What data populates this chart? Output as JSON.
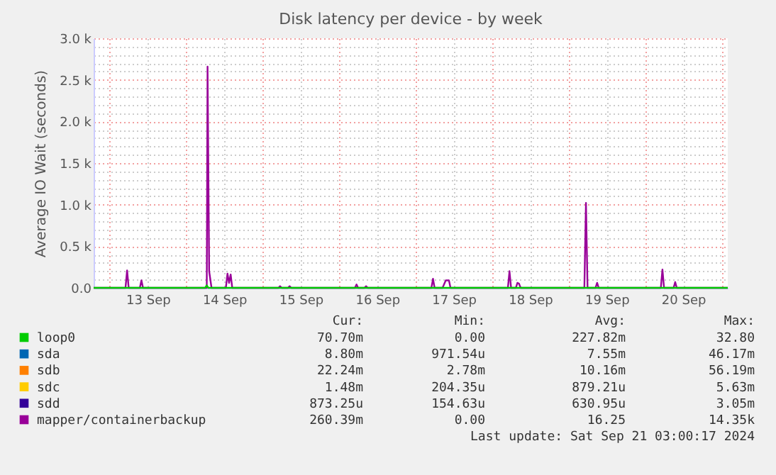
{
  "chart_data": {
    "type": "line",
    "title": "Disk latency per device - by week",
    "ylabel": "Average IO Wait (seconds)",
    "xlim": [
      "2024-09-12T19:00",
      "2024-09-21T02:00"
    ],
    "xticks": [
      {
        "value": "2024-09-13T00:00",
        "label": null
      },
      {
        "value": "2024-09-13T12:00",
        "label": "13 Sep"
      },
      {
        "value": "2024-09-14T00:00",
        "label": null
      },
      {
        "value": "2024-09-14T12:00",
        "label": "14 Sep"
      },
      {
        "value": "2024-09-15T00:00",
        "label": null
      },
      {
        "value": "2024-09-15T12:00",
        "label": "15 Sep"
      },
      {
        "value": "2024-09-16T00:00",
        "label": null
      },
      {
        "value": "2024-09-16T12:00",
        "label": "16 Sep"
      },
      {
        "value": "2024-09-17T00:00",
        "label": null
      },
      {
        "value": "2024-09-17T12:00",
        "label": "17 Sep"
      },
      {
        "value": "2024-09-18T00:00",
        "label": null
      },
      {
        "value": "2024-09-18T12:00",
        "label": "18 Sep"
      },
      {
        "value": "2024-09-19T00:00",
        "label": null
      },
      {
        "value": "2024-09-19T12:00",
        "label": "19 Sep"
      },
      {
        "value": "2024-09-20T00:00",
        "label": null
      },
      {
        "value": "2024-09-20T12:00",
        "label": "20 Sep"
      },
      {
        "value": "2024-09-21T00:00",
        "label": null
      }
    ],
    "ylim": [
      0,
      3000
    ],
    "yticks": [
      {
        "value": 0,
        "label": "0.0"
      },
      {
        "value": 100,
        "label": null
      },
      {
        "value": 200,
        "label": null
      },
      {
        "value": 300,
        "label": null
      },
      {
        "value": 400,
        "label": null
      },
      {
        "value": 500,
        "label": "0.5 k"
      },
      {
        "value": 600,
        "label": null
      },
      {
        "value": 700,
        "label": null
      },
      {
        "value": 800,
        "label": null
      },
      {
        "value": 900,
        "label": null
      },
      {
        "value": 1000,
        "label": "1.0 k"
      },
      {
        "value": 1100,
        "label": null
      },
      {
        "value": 1200,
        "label": null
      },
      {
        "value": 1300,
        "label": null
      },
      {
        "value": 1400,
        "label": null
      },
      {
        "value": 1500,
        "label": "1.5 k"
      },
      {
        "value": 1600,
        "label": null
      },
      {
        "value": 1700,
        "label": null
      },
      {
        "value": 1800,
        "label": null
      },
      {
        "value": 1900,
        "label": null
      },
      {
        "value": 2000,
        "label": "2.0 k"
      },
      {
        "value": 2100,
        "label": null
      },
      {
        "value": 2200,
        "label": null
      },
      {
        "value": 2300,
        "label": null
      },
      {
        "value": 2400,
        "label": null
      },
      {
        "value": 2500,
        "label": "2.5 k"
      },
      {
        "value": 2600,
        "label": null
      },
      {
        "value": 2700,
        "label": null
      },
      {
        "value": 2800,
        "label": null
      },
      {
        "value": 2900,
        "label": null
      },
      {
        "value": 3000,
        "label": "3.0 k"
      }
    ],
    "grid": true,
    "legend": "bottom",
    "marker": "none",
    "line_style": "solid",
    "series": [
      {
        "name": "loop0",
        "color": "#00cc00",
        "x": [
          "2024-09-12T19:00",
          "2024-09-14T06:00",
          "2024-09-14T06:30",
          "2024-09-14T07:00",
          "2024-09-21T02:00"
        ],
        "values": [
          0,
          0,
          30,
          0,
          0
        ]
      },
      {
        "name": "sda",
        "color": "#0066b3"
      },
      {
        "name": "sdb",
        "color": "#ff8000"
      },
      {
        "name": "sdc",
        "color": "#ffcc00"
      },
      {
        "name": "sdd",
        "color": "#330099"
      },
      {
        "name": "mapper/containerbackup",
        "color": "#990099",
        "x": [
          "2024-09-12T19:00",
          "2024-09-13T05:00",
          "2024-09-13T05:30",
          "2024-09-13T06:00",
          "2024-09-13T09:30",
          "2024-09-13T10:00",
          "2024-09-13T10:30",
          "2024-09-14T06:30",
          "2024-09-14T06:45",
          "2024-09-14T07:15",
          "2024-09-14T08:00",
          "2024-09-14T12:30",
          "2024-09-14T13:00",
          "2024-09-14T13:30",
          "2024-09-14T14:00",
          "2024-09-14T14:30",
          "2024-09-15T05:00",
          "2024-09-15T05:30",
          "2024-09-15T06:00",
          "2024-09-15T08:00",
          "2024-09-15T08:30",
          "2024-09-15T09:00",
          "2024-09-16T05:00",
          "2024-09-16T05:30",
          "2024-09-16T06:00",
          "2024-09-16T08:00",
          "2024-09-16T08:30",
          "2024-09-16T09:00",
          "2024-09-17T05:00",
          "2024-09-17T05:30",
          "2024-09-17T06:00",
          "2024-09-17T08:30",
          "2024-09-17T09:30",
          "2024-09-17T10:30",
          "2024-09-17T11:00",
          "2024-09-18T05:00",
          "2024-09-18T05:30",
          "2024-09-18T06:00",
          "2024-09-18T07:30",
          "2024-09-18T08:00",
          "2024-09-18T08:30",
          "2024-09-18T09:00",
          "2024-09-19T05:00",
          "2024-09-19T05:30",
          "2024-09-19T06:00",
          "2024-09-19T08:30",
          "2024-09-19T09:00",
          "2024-09-19T09:30",
          "2024-09-20T05:00",
          "2024-09-20T05:30",
          "2024-09-20T06:00",
          "2024-09-20T09:00",
          "2024-09-20T09:30",
          "2024-09-20T10:00",
          "2024-09-21T02:00"
        ],
        "values": [
          0,
          0,
          210,
          0,
          0,
          90,
          0,
          0,
          2660,
          200,
          0,
          0,
          170,
          60,
          160,
          0,
          0,
          20,
          0,
          0,
          20,
          0,
          0,
          40,
          0,
          0,
          20,
          0,
          0,
          110,
          0,
          0,
          90,
          90,
          0,
          0,
          200,
          0,
          0,
          60,
          50,
          0,
          0,
          1020,
          0,
          0,
          60,
          0,
          0,
          220,
          0,
          0,
          70,
          0,
          0
        ]
      }
    ],
    "annotations": [
      "Cur:",
      "Min:",
      "Avg:",
      "Max:",
      "70.70m",
      "0.00",
      "227.82m",
      "32.80",
      "8.80m",
      "971.54u",
      "7.55m",
      "46.17m",
      "22.24m",
      "2.78m",
      "10.16m",
      "56.19m",
      "1.48m",
      "204.35u",
      "879.21u",
      "5.63m",
      "873.25u",
      "154.63u",
      "630.95u",
      "3.05m",
      "260.39m",
      "0.00",
      "16.25",
      "14.35k",
      "Last update: Sat Sep 21 03:00:17 2024"
    ]
  }
}
